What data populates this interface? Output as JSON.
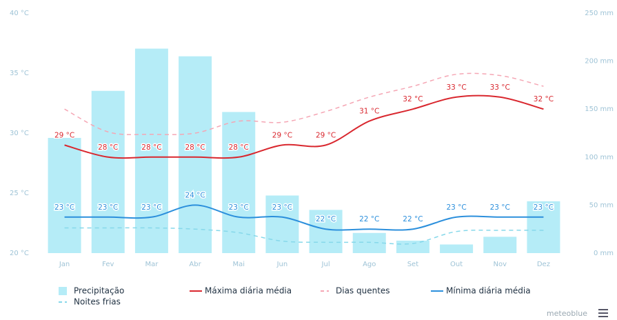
{
  "chart_data": {
    "type": "combo",
    "categories": [
      "Jan",
      "Fev",
      "Mar",
      "Abr",
      "Mai",
      "Jun",
      "Jul",
      "Ago",
      "Set",
      "Out",
      "Nov",
      "Dez"
    ],
    "ylim": [
      20,
      40
    ],
    "yticks": [
      {
        "value": 20,
        "label": "20 °C"
      },
      {
        "value": 25,
        "label": "25 °C"
      },
      {
        "value": 30,
        "label": "30 °C"
      },
      {
        "value": 35,
        "label": "35 °C"
      },
      {
        "value": 40,
        "label": "40 °C"
      }
    ],
    "y2lim": [
      0,
      250
    ],
    "y2ticks": [
      {
        "value": 0,
        "label": "0 mm"
      },
      {
        "value": 50,
        "label": "50 mm"
      },
      {
        "value": 100,
        "label": "100 mm"
      },
      {
        "value": 150,
        "label": "150 mm"
      },
      {
        "value": 200,
        "label": "200 mm"
      },
      {
        "value": 250,
        "label": "250 mm"
      }
    ],
    "series": [
      {
        "name": "Precipitação",
        "type": "bar",
        "axis": "y2",
        "color": "#b5ecf7",
        "values": [
          120,
          169,
          213,
          205,
          147,
          60,
          45,
          21,
          13,
          9,
          17,
          54
        ]
      },
      {
        "name": "Máxima diária média",
        "type": "line",
        "color": "#d9272e",
        "values": [
          29,
          28,
          28,
          28,
          28,
          29,
          29,
          31,
          32,
          33,
          33,
          32
        ],
        "value_labels": [
          "29 °C",
          "28 °C",
          "28 °C",
          "28 °C",
          "28 °C",
          "29 °C",
          "29 °C",
          "31 °C",
          "32 °C",
          "33 °C",
          "33 °C",
          "32 °C"
        ]
      },
      {
        "name": "Dias quentes",
        "type": "line",
        "dashed": true,
        "color": "#f5a6b4",
        "values": [
          32,
          30.1,
          29.9,
          30,
          31,
          30.9,
          31.8,
          33,
          33.9,
          34.9,
          34.8,
          33.9
        ]
      },
      {
        "name": "Mínima diária média",
        "type": "line",
        "color": "#2b8fdc",
        "values": [
          23,
          23,
          23,
          24,
          23,
          23,
          22,
          22,
          22,
          23,
          23,
          23
        ],
        "value_labels": [
          "23 °C",
          "23 °C",
          "23 °C",
          "24 °C",
          "23 °C",
          "23 °C",
          "22 °C",
          "22 °C",
          "22 °C",
          "23 °C",
          "23 °C",
          "23 °C"
        ]
      },
      {
        "name": "Noites frias",
        "type": "line",
        "dashed": true,
        "color": "#86d8ea",
        "values": [
          22.1,
          22.1,
          22.1,
          22,
          21.7,
          21,
          20.9,
          20.9,
          20.8,
          21.8,
          21.9,
          21.9
        ]
      }
    ],
    "footer": "meteoblue"
  }
}
